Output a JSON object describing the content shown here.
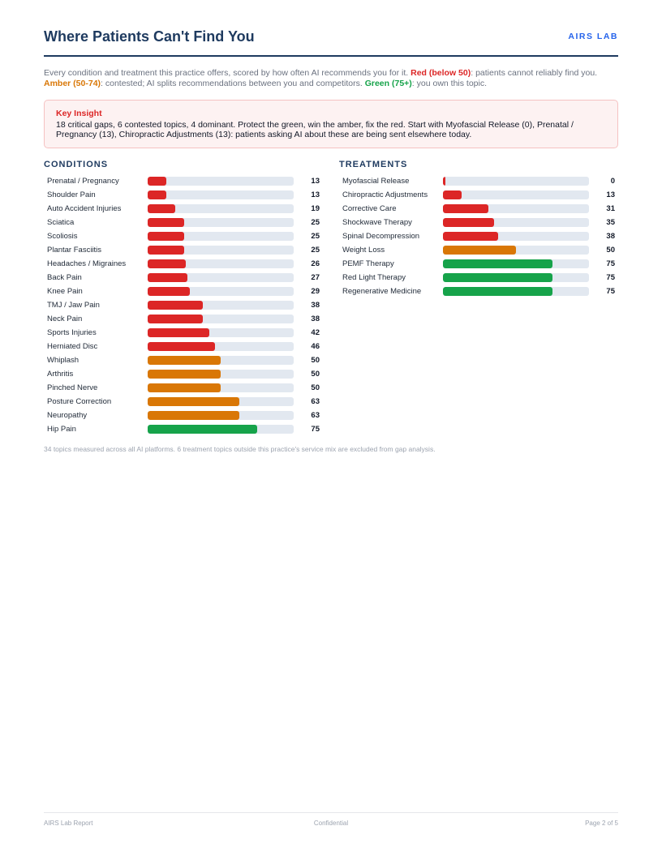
{
  "header": {
    "title": "Where Patients Can't Find You",
    "brand": "AIRS LAB"
  },
  "intro": {
    "text_1": "Every condition and treatment this practice offers, scored by how often AI recommends you for it. ",
    "red_label": "Red (below 50)",
    "text_2": ": patients cannot reliably find you. ",
    "amber_label": "Amber (50-74)",
    "text_3": ": contested; AI splits recommendations between you and competitors. ",
    "green_label": "Green (75+)",
    "text_4": ": you own this topic."
  },
  "insight": {
    "title": "Key Insight",
    "text": "18 critical gaps, 6 contested topics, 4 dominant. Protect the green, win the amber, fix the red. Start with Myofascial Release (0), Prenatal / Pregnancy (13), Chiropractic Adjustments (13): patients asking AI about these are being sent elsewhere today."
  },
  "colors": {
    "red": "#dc2626",
    "amber": "#d97706",
    "green": "#16a34a",
    "track": "#e2e8f0"
  },
  "chart_data": [
    {
      "type": "bar",
      "orientation": "horizontal",
      "title": "CONDITIONS",
      "xlim": [
        0,
        100
      ],
      "categories": [
        "Prenatal / Pregnancy",
        "Shoulder Pain",
        "Auto Accident Injuries",
        "Sciatica",
        "Scoliosis",
        "Plantar Fasciitis",
        "Headaches / Migraines",
        "Back Pain",
        "Knee Pain",
        "TMJ / Jaw Pain",
        "Neck Pain",
        "Sports Injuries",
        "Herniated Disc",
        "Whiplash",
        "Arthritis",
        "Pinched Nerve",
        "Posture Correction",
        "Neuropathy",
        "Hip Pain"
      ],
      "values": [
        13,
        13,
        19,
        25,
        25,
        25,
        26,
        27,
        29,
        38,
        38,
        42,
        46,
        50,
        50,
        50,
        63,
        63,
        75
      ]
    },
    {
      "type": "bar",
      "orientation": "horizontal",
      "title": "TREATMENTS",
      "xlim": [
        0,
        100
      ],
      "categories": [
        "Myofascial Release",
        "Chiropractic Adjustments",
        "Corrective Care",
        "Shockwave Therapy",
        "Spinal Decompression",
        "Weight Loss",
        "PEMF Therapy",
        "Red Light Therapy",
        "Regenerative Medicine"
      ],
      "values": [
        0,
        13,
        31,
        35,
        38,
        50,
        75,
        75,
        75
      ]
    }
  ],
  "footnote": "34 topics measured across all AI platforms. 6 treatment topics outside this practice's service mix are excluded from gap analysis.",
  "footer": {
    "left": "AIRS Lab Report",
    "center": "Confidential",
    "right": "Page 2 of 5"
  }
}
